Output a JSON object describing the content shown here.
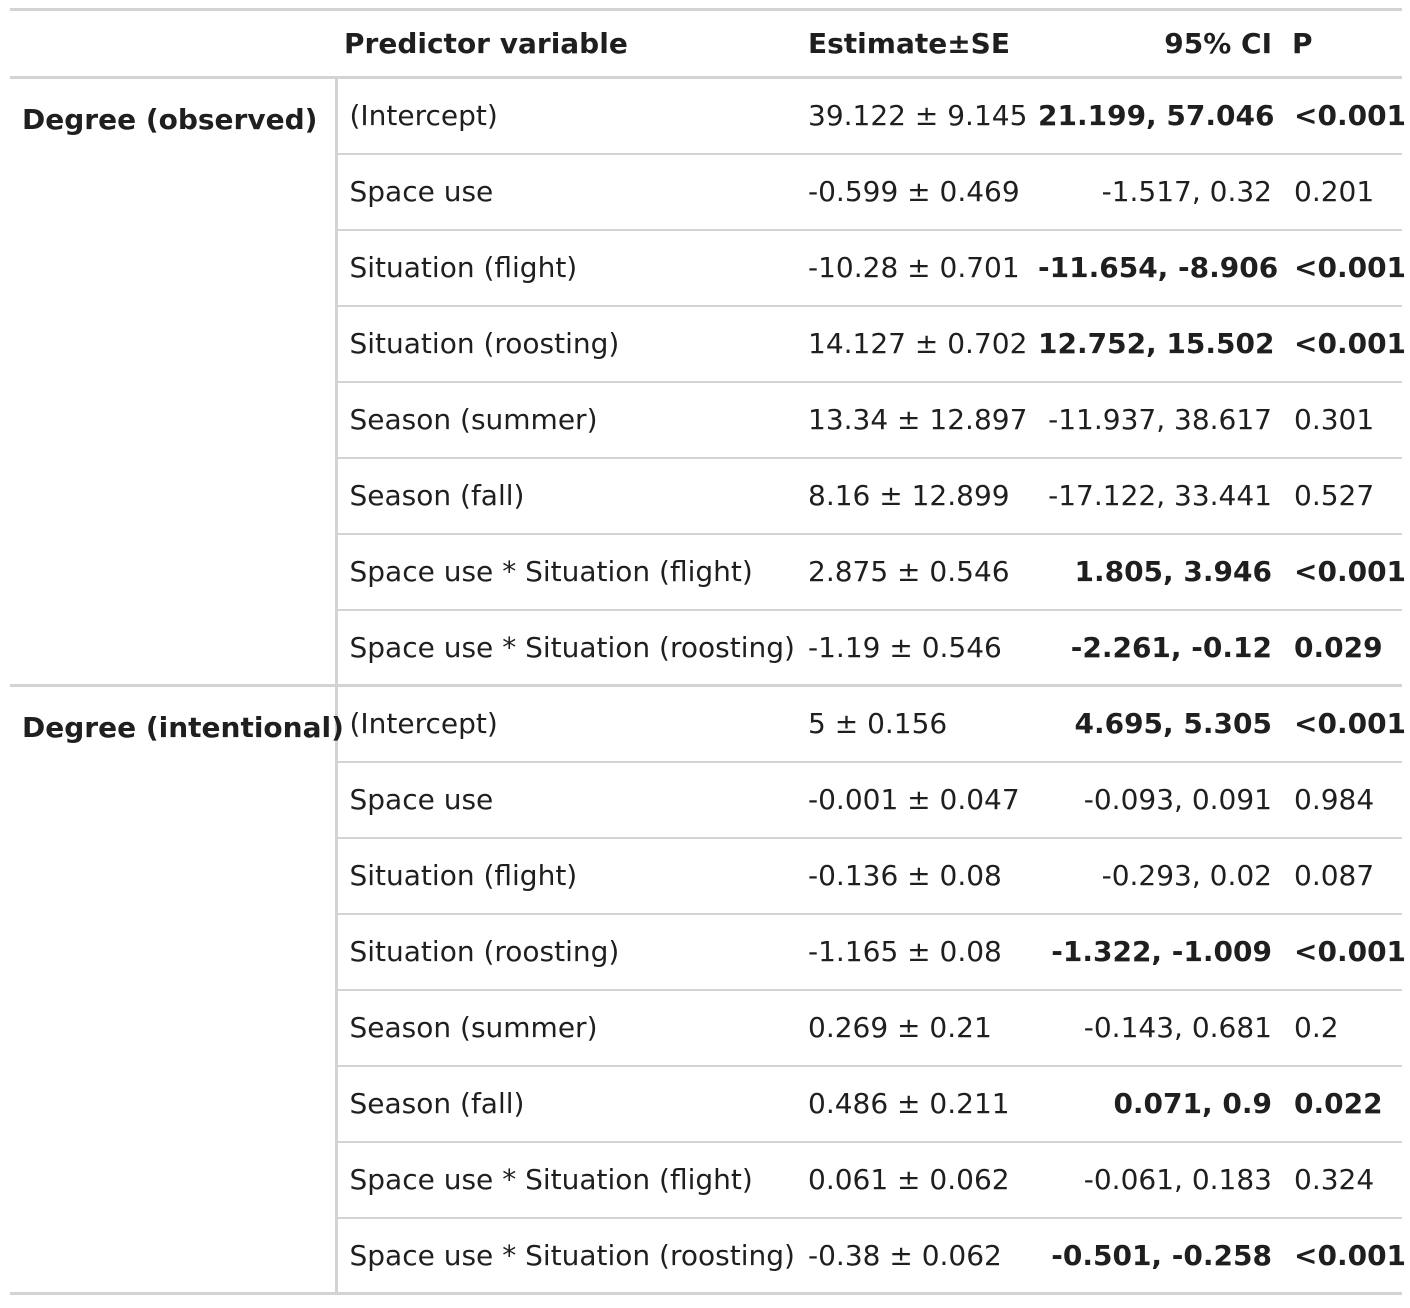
{
  "header": {
    "group": "",
    "predictor": "Predictor variable",
    "estimate": "Estimate±SE",
    "ci": "95% CI",
    "p": "P"
  },
  "groups": [
    {
      "label": "Degree (observed)",
      "rows": [
        {
          "predictor": "(Intercept)",
          "estimate": "39.122 ± 9.145",
          "ci": "21.199, 57.046",
          "p": "<0.001",
          "significant": true
        },
        {
          "predictor": "Space use",
          "estimate": "-0.599 ± 0.469",
          "ci": "-1.517, 0.32",
          "p": "0.201",
          "significant": false
        },
        {
          "predictor": "Situation (flight)",
          "estimate": "-10.28 ± 0.701",
          "ci": "-11.654, -8.906",
          "p": "<0.001",
          "significant": true
        },
        {
          "predictor": "Situation (roosting)",
          "estimate": "14.127 ± 0.702",
          "ci": "12.752, 15.502",
          "p": "<0.001",
          "significant": true
        },
        {
          "predictor": "Season (summer)",
          "estimate": "13.34 ± 12.897",
          "ci": "-11.937, 38.617",
          "p": "0.301",
          "significant": false
        },
        {
          "predictor": "Season (fall)",
          "estimate": "8.16 ± 12.899",
          "ci": "-17.122, 33.441",
          "p": "0.527",
          "significant": false
        },
        {
          "predictor": "Space use * Situation (flight)",
          "estimate": "2.875 ± 0.546",
          "ci": "1.805, 3.946",
          "p": "<0.001",
          "significant": true
        },
        {
          "predictor": "Space use * Situation (roosting)",
          "estimate": "-1.19 ± 0.546",
          "ci": "-2.261, -0.12",
          "p": "0.029",
          "significant": true
        }
      ]
    },
    {
      "label": "Degree (intentional)",
      "rows": [
        {
          "predictor": "(Intercept)",
          "estimate": "5 ± 0.156",
          "ci": "4.695, 5.305",
          "p": "<0.001",
          "significant": true
        },
        {
          "predictor": "Space use",
          "estimate": "-0.001 ± 0.047",
          "ci": "-0.093, 0.091",
          "p": "0.984",
          "significant": false
        },
        {
          "predictor": "Situation (flight)",
          "estimate": "-0.136 ± 0.08",
          "ci": "-0.293, 0.02",
          "p": "0.087",
          "significant": false
        },
        {
          "predictor": "Situation (roosting)",
          "estimate": "-1.165 ± 0.08",
          "ci": "-1.322, -1.009",
          "p": "<0.001",
          "significant": true
        },
        {
          "predictor": "Season (summer)",
          "estimate": "0.269 ± 0.21",
          "ci": "-0.143, 0.681",
          "p": "0.2",
          "significant": false
        },
        {
          "predictor": "Season (fall)",
          "estimate": "0.486 ± 0.211",
          "ci": "0.071, 0.9",
          "p": "0.022",
          "significant": true
        },
        {
          "predictor": "Space use * Situation (flight)",
          "estimate": "0.061 ± 0.062",
          "ci": "-0.061, 0.183",
          "p": "0.324",
          "significant": false
        },
        {
          "predictor": "Space use * Situation (roosting)",
          "estimate": "-0.38 ± 0.062",
          "ci": "-0.501, -0.258",
          "p": "<0.001",
          "significant": true
        }
      ]
    }
  ]
}
